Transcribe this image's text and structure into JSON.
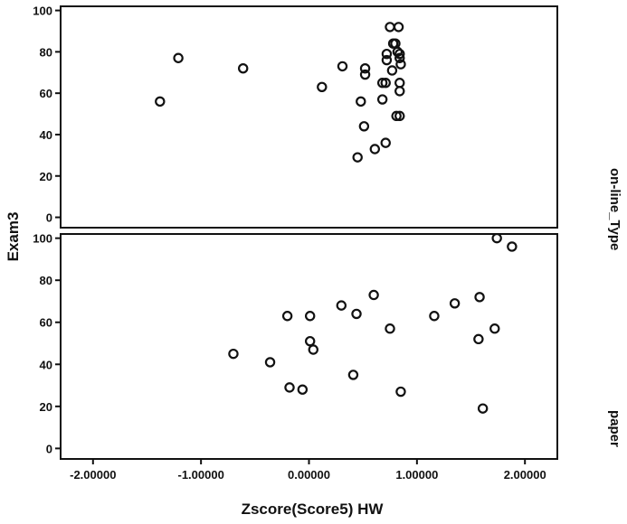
{
  "chart_data": {
    "type": "scatter",
    "xlabel": "Zscore(Score5)  HW",
    "ylabel": "Exam3",
    "facet_title": "on-line_Type",
    "xlim": [
      -2.3,
      2.3
    ],
    "ylim": [
      -5,
      102
    ],
    "xticks": [
      -2.0,
      -1.0,
      0.0,
      1.0,
      2.0
    ],
    "xtick_labels": [
      "-2.00000",
      "-1.00000",
      "0.00000",
      "1.00000",
      "2.00000"
    ],
    "yticks": [
      0,
      20,
      40,
      60,
      80,
      100
    ],
    "ytick_labels": [
      "0",
      "20",
      "40",
      "60",
      "80",
      "100"
    ],
    "grid": false,
    "panels": [
      {
        "label": "on-line_Type",
        "points": [
          [
            -1.38,
            56
          ],
          [
            -1.21,
            77
          ],
          [
            -0.61,
            72
          ],
          [
            0.12,
            63
          ],
          [
            0.31,
            73
          ],
          [
            0.45,
            29
          ],
          [
            0.48,
            56
          ],
          [
            0.51,
            44
          ],
          [
            0.52,
            72
          ],
          [
            0.52,
            69
          ],
          [
            0.61,
            33
          ],
          [
            0.68,
            57
          ],
          [
            0.68,
            65
          ],
          [
            0.71,
            65
          ],
          [
            0.71,
            36
          ],
          [
            0.72,
            79
          ],
          [
            0.72,
            76
          ],
          [
            0.75,
            92
          ],
          [
            0.77,
            71
          ],
          [
            0.78,
            84
          ],
          [
            0.8,
            84
          ],
          [
            0.81,
            49
          ],
          [
            0.82,
            80
          ],
          [
            0.83,
            92
          ],
          [
            0.84,
            77
          ],
          [
            0.84,
            49
          ],
          [
            0.84,
            79
          ],
          [
            0.84,
            65
          ],
          [
            0.84,
            61
          ],
          [
            0.85,
            74
          ]
        ]
      },
      {
        "label": "paper",
        "points": [
          [
            -0.7,
            45
          ],
          [
            -0.36,
            41
          ],
          [
            -0.2,
            63
          ],
          [
            -0.18,
            29
          ],
          [
            -0.06,
            28
          ],
          [
            0.01,
            51
          ],
          [
            0.01,
            63
          ],
          [
            0.04,
            47
          ],
          [
            0.3,
            68
          ],
          [
            0.41,
            35
          ],
          [
            0.44,
            64
          ],
          [
            0.6,
            73
          ],
          [
            0.75,
            57
          ],
          [
            0.85,
            27
          ],
          [
            1.16,
            63
          ],
          [
            1.35,
            69
          ],
          [
            1.57,
            52
          ],
          [
            1.58,
            72
          ],
          [
            1.61,
            19
          ],
          [
            1.72,
            57
          ],
          [
            1.74,
            100
          ],
          [
            1.88,
            96
          ]
        ]
      }
    ]
  }
}
